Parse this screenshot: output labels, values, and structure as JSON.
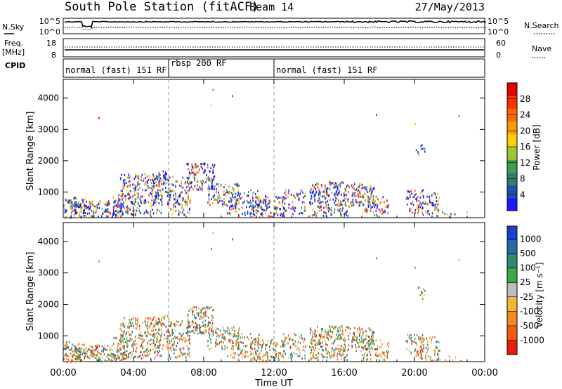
{
  "header": {
    "station": "South Pole Station (fitACF)",
    "beam": "Beam 14",
    "date": "27/May/2013"
  },
  "top_panels": {
    "nsky_label": "N.Sky",
    "nsky_ticks": [
      "10^5",
      "10^0"
    ],
    "nsearch_label": "N.Search",
    "nsearch_ticks": [
      "10^5",
      "10^0"
    ],
    "freq_label_1": "Freq.",
    "freq_label_2": "[MHz]",
    "freq_ticks": [
      "18",
      "8"
    ],
    "nave_label": "Nave",
    "nave_ticks": [
      "60",
      "0"
    ],
    "cpid_label": "CPID",
    "cpid_segments": [
      {
        "label": "normal (fast) 151 RF",
        "start_hour": 0,
        "end_hour": 6
      },
      {
        "label": "rbsp 200 RF",
        "start_hour": 6,
        "end_hour": 12
      },
      {
        "label": "normal (fast) 151 RF",
        "start_hour": 12,
        "end_hour": 24
      }
    ]
  },
  "chart_data": [
    {
      "type": "heatmap",
      "name": "power",
      "ylabel": "Slant Range [km]",
      "yticks": [
        1000,
        2000,
        3000,
        4000
      ],
      "ylim": [
        180,
        4600
      ],
      "colorbar_label": "Power [dB]",
      "colorbar_ticks": [
        "4",
        "8",
        "12",
        "16",
        "20",
        "24",
        "28"
      ],
      "colorbar_colors": [
        "#1a1aff",
        "#1f4fb0",
        "#2f7f6a",
        "#3fa050",
        "#9cc832",
        "#ffcc00",
        "#ff9a00",
        "#ff6600",
        "#ff3300",
        "#e60000"
      ]
    },
    {
      "type": "heatmap",
      "name": "velocity",
      "ylabel": "Slant Range [km]",
      "yticks": [
        1000,
        2000,
        3000,
        4000
      ],
      "ylim": [
        180,
        4600
      ],
      "colorbar_label": "Velocity [m s⁻¹]",
      "colorbar_ticks": [
        "1000",
        "500",
        "100",
        "25",
        "-25",
        "-100",
        "-500",
        "-1000"
      ],
      "colorbar_colors": [
        "#1a3fcf",
        "#2a6aa8",
        "#2f8a70",
        "#3faa45",
        "#bdbdbd",
        "#f2b830",
        "#f78a1a",
        "#f55a0f",
        "#e81d0d"
      ]
    }
  ],
  "x_axis": {
    "label": "Time UT",
    "tick_labels": [
      "00:00",
      "04:00",
      "08:00",
      "12:00",
      "16:00",
      "20:00",
      "00:00"
    ],
    "tick_hours": [
      0,
      4,
      8,
      12,
      16,
      20,
      24
    ],
    "range_hours": [
      0,
      24
    ],
    "mode_change_hours": [
      6,
      12
    ]
  },
  "scatter_blobs": [
    {
      "t0": 0.0,
      "t1": 1.3,
      "r0": 200,
      "r1": 850,
      "d": 0.65
    },
    {
      "t0": 0.4,
      "t1": 1.9,
      "r0": 330,
      "r1": 650,
      "d": 0.55
    },
    {
      "t0": 1.4,
      "t1": 3.4,
      "r0": 220,
      "r1": 750,
      "d": 0.6
    },
    {
      "t0": 2.8,
      "t1": 4.0,
      "r0": 280,
      "r1": 1000,
      "d": 0.35
    },
    {
      "t0": 3.2,
      "t1": 5.6,
      "r0": 300,
      "r1": 1600,
      "d": 0.45
    },
    {
      "t0": 5.0,
      "t1": 6.2,
      "r0": 600,
      "r1": 1700,
      "d": 0.4
    },
    {
      "t0": 5.9,
      "t1": 7.2,
      "r0": 300,
      "r1": 1500,
      "d": 0.45
    },
    {
      "t0": 7.0,
      "t1": 8.6,
      "r0": 1100,
      "r1": 1950,
      "d": 0.6
    },
    {
      "t0": 8.2,
      "t1": 10.0,
      "r0": 600,
      "r1": 1300,
      "d": 0.45
    },
    {
      "t0": 9.3,
      "t1": 11.2,
      "r0": 280,
      "r1": 1100,
      "d": 0.35
    },
    {
      "t0": 10.6,
      "t1": 12.6,
      "r0": 200,
      "r1": 900,
      "d": 0.6
    },
    {
      "t0": 12.5,
      "t1": 13.8,
      "r0": 300,
      "r1": 1100,
      "d": 0.35
    },
    {
      "t0": 14.0,
      "t1": 16.2,
      "r0": 250,
      "r1": 1350,
      "d": 0.6
    },
    {
      "t0": 16.2,
      "t1": 17.7,
      "r0": 550,
      "r1": 1300,
      "d": 0.6
    },
    {
      "t0": 17.0,
      "t1": 18.5,
      "r0": 250,
      "r1": 900,
      "d": 0.4
    },
    {
      "t0": 19.5,
      "t1": 20.5,
      "r0": 350,
      "r1": 1100,
      "d": 0.45
    },
    {
      "t0": 20.3,
      "t1": 21.4,
      "r0": 250,
      "r1": 1000,
      "d": 0.45
    },
    {
      "t0": 21.0,
      "t1": 23.0,
      "r0": 200,
      "r1": 450,
      "d": 0.12
    },
    {
      "t0": 20.0,
      "t1": 20.6,
      "r0": 2200,
      "r1": 2600,
      "d": 0.25
    }
  ]
}
